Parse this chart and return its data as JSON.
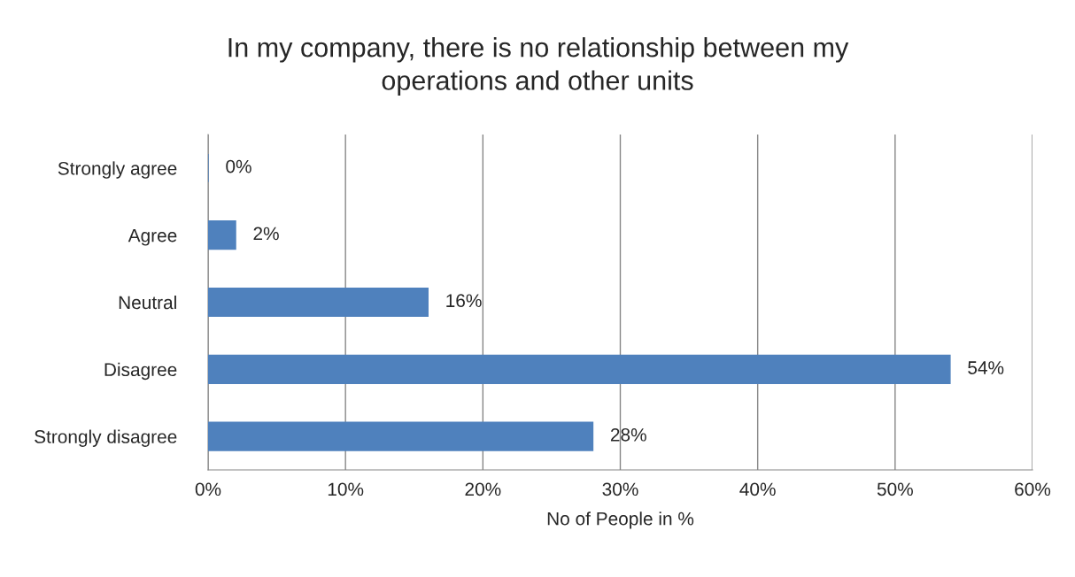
{
  "chart_data": {
    "type": "bar",
    "orientation": "horizontal",
    "title": "In my company, there is no relationship between my\noperations and other units",
    "xlabel": "No of People in %",
    "categories": [
      "Strongly agree",
      "Agree",
      "Neutral",
      "Disagree",
      "Strongly disagree"
    ],
    "values": [
      0,
      2,
      16,
      54,
      28
    ],
    "color": "#4f81bd",
    "value_labels": [
      "0%",
      "2%",
      "16%",
      "54%",
      "28%"
    ],
    "xlim": [
      0,
      60
    ],
    "xticks": [
      {
        "value": 0,
        "label": "0%"
      },
      {
        "value": 10,
        "label": "10%"
      },
      {
        "value": 20,
        "label": "20%"
      },
      {
        "value": 30,
        "label": "30%"
      },
      {
        "value": 40,
        "label": "40%"
      },
      {
        "value": 50,
        "label": "50%"
      },
      {
        "value": 60,
        "label": "60%"
      }
    ],
    "grid": "x",
    "legend": false
  }
}
